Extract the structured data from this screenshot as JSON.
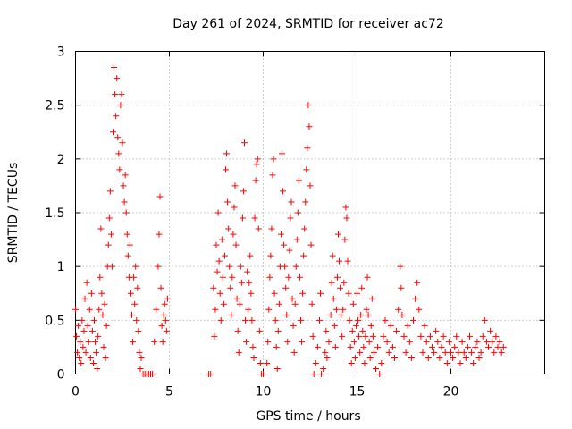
{
  "chart_data": {
    "type": "scatter",
    "title": "Day 261 of 2024, SRMTID for receiver ac72",
    "xlabel": "GPS time / hours",
    "ylabel": "SRMTID / TECUs",
    "xlim": [
      0,
      25
    ],
    "ylim": [
      0,
      3
    ],
    "xticks": [
      0,
      5,
      10,
      15,
      20
    ],
    "yticks": [
      0,
      0.5,
      1,
      1.5,
      2,
      2.5,
      3
    ],
    "xtick_labels": [
      "0",
      "5",
      "10",
      "15",
      "20"
    ],
    "ytick_labels": [
      "0",
      "0.5",
      "1",
      "1.5",
      "2",
      "2.5",
      "3"
    ],
    "grid": true,
    "legend": "none",
    "marker": "plus",
    "series": [
      {
        "name": "SRMTID",
        "color": "#ff0000",
        "points": [
          [
            0.0,
            0.6
          ],
          [
            0.05,
            0.35
          ],
          [
            0.1,
            0.2
          ],
          [
            0.15,
            0.45
          ],
          [
            0.2,
            0.15
          ],
          [
            0.25,
            0.3
          ],
          [
            0.3,
            0.1
          ],
          [
            0.35,
            0.5
          ],
          [
            0.4,
            0.25
          ],
          [
            0.45,
            0.4
          ],
          [
            0.5,
            0.7
          ],
          [
            0.55,
            0.2
          ],
          [
            0.6,
            0.85
          ],
          [
            0.65,
            0.45
          ],
          [
            0.7,
            0.3
          ],
          [
            0.75,
            0.6
          ],
          [
            0.8,
            0.15
          ],
          [
            0.85,
            0.75
          ],
          [
            0.9,
            0.4
          ],
          [
            0.95,
            0.1
          ],
          [
            1.0,
            0.5
          ],
          [
            1.05,
            0.3
          ],
          [
            1.1,
            0.2
          ],
          [
            1.15,
            0.05
          ],
          [
            1.2,
            0.35
          ],
          [
            1.25,
            0.6
          ],
          [
            1.3,
            0.9
          ],
          [
            1.35,
            1.35
          ],
          [
            1.4,
            0.75
          ],
          [
            1.45,
            0.55
          ],
          [
            1.5,
            0.25
          ],
          [
            1.55,
            0.65
          ],
          [
            1.6,
            0.15
          ],
          [
            1.65,
            0.45
          ],
          [
            1.7,
            1.0
          ],
          [
            1.75,
            1.2
          ],
          [
            1.8,
            1.45
          ],
          [
            1.85,
            1.7
          ],
          [
            1.9,
            1.3
          ],
          [
            1.95,
            1.0
          ],
          [
            2.0,
            2.25
          ],
          [
            2.05,
            2.85
          ],
          [
            2.1,
            2.6
          ],
          [
            2.15,
            2.4
          ],
          [
            2.2,
            2.75
          ],
          [
            2.25,
            2.2
          ],
          [
            2.3,
            2.05
          ],
          [
            2.35,
            1.9
          ],
          [
            2.4,
            2.5
          ],
          [
            2.45,
            2.6
          ],
          [
            2.5,
            2.15
          ],
          [
            2.55,
            1.75
          ],
          [
            2.6,
            1.6
          ],
          [
            2.65,
            1.85
          ],
          [
            2.7,
            1.5
          ],
          [
            2.75,
            1.3
          ],
          [
            2.8,
            1.1
          ],
          [
            2.85,
            0.9
          ],
          [
            2.9,
            1.2
          ],
          [
            2.95,
            0.75
          ],
          [
            3.0,
            0.55
          ],
          [
            3.05,
            0.3
          ],
          [
            3.1,
            0.9
          ],
          [
            3.15,
            0.65
          ],
          [
            3.2,
            1.0
          ],
          [
            3.25,
            0.5
          ],
          [
            3.3,
            0.8
          ],
          [
            3.35,
            0.4
          ],
          [
            3.4,
            0.2
          ],
          [
            3.45,
            0.05
          ],
          [
            3.5,
            0.15
          ],
          [
            3.6,
            0.0
          ],
          [
            3.7,
            0.0
          ],
          [
            3.8,
            0.0
          ],
          [
            3.9,
            0.0
          ],
          [
            4.0,
            0.0
          ],
          [
            4.1,
            0.0
          ],
          [
            4.2,
            0.3
          ],
          [
            4.3,
            0.6
          ],
          [
            4.4,
            1.0
          ],
          [
            4.45,
            1.3
          ],
          [
            4.5,
            1.65
          ],
          [
            4.55,
            0.8
          ],
          [
            4.6,
            0.45
          ],
          [
            4.65,
            0.3
          ],
          [
            4.7,
            0.55
          ],
          [
            4.75,
            0.65
          ],
          [
            4.8,
            0.5
          ],
          [
            4.85,
            0.4
          ],
          [
            4.9,
            0.7
          ],
          [
            7.1,
            0.0
          ],
          [
            7.2,
            0.0
          ],
          [
            7.35,
            0.8
          ],
          [
            7.4,
            0.35
          ],
          [
            7.45,
            0.6
          ],
          [
            7.5,
            1.2
          ],
          [
            7.55,
            0.95
          ],
          [
            7.6,
            1.5
          ],
          [
            7.65,
            1.05
          ],
          [
            7.7,
            0.75
          ],
          [
            7.75,
            0.5
          ],
          [
            7.8,
            1.25
          ],
          [
            7.85,
            0.9
          ],
          [
            7.9,
            0.65
          ],
          [
            7.95,
            1.1
          ],
          [
            8.0,
            1.9
          ],
          [
            8.05,
            2.05
          ],
          [
            8.1,
            1.6
          ],
          [
            8.15,
            1.35
          ],
          [
            8.2,
            1.0
          ],
          [
            8.25,
            0.8
          ],
          [
            8.3,
            0.55
          ],
          [
            8.35,
            0.9
          ],
          [
            8.4,
            1.3
          ],
          [
            8.45,
            1.55
          ],
          [
            8.5,
            1.75
          ],
          [
            8.55,
            1.2
          ],
          [
            8.6,
            0.7
          ],
          [
            8.65,
            0.4
          ],
          [
            8.7,
            0.2
          ],
          [
            8.75,
            0.65
          ],
          [
            8.8,
            1.0
          ],
          [
            8.85,
            0.85
          ],
          [
            8.9,
            1.45
          ],
          [
            8.95,
            1.7
          ],
          [
            9.0,
            2.15
          ],
          [
            9.05,
            0.5
          ],
          [
            9.1,
            0.3
          ],
          [
            9.15,
            0.95
          ],
          [
            9.2,
            0.6
          ],
          [
            9.25,
            0.85
          ],
          [
            9.3,
            1.1
          ],
          [
            9.35,
            0.75
          ],
          [
            9.4,
            0.5
          ],
          [
            9.45,
            0.25
          ],
          [
            9.5,
            0.15
          ],
          [
            9.55,
            1.45
          ],
          [
            9.6,
            1.8
          ],
          [
            9.65,
            1.95
          ],
          [
            9.7,
            2.0
          ],
          [
            9.75,
            1.35
          ],
          [
            9.8,
            0.4
          ],
          [
            9.85,
            0.1
          ],
          [
            9.9,
            0.0
          ],
          [
            10.0,
            0.0
          ],
          [
            10.2,
            0.1
          ],
          [
            10.25,
            0.3
          ],
          [
            10.3,
            0.6
          ],
          [
            10.35,
            0.9
          ],
          [
            10.4,
            1.1
          ],
          [
            10.45,
            1.35
          ],
          [
            10.5,
            1.85
          ],
          [
            10.55,
            2.0
          ],
          [
            10.6,
            0.75
          ],
          [
            10.65,
            0.5
          ],
          [
            10.7,
            0.25
          ],
          [
            10.75,
            0.05
          ],
          [
            10.8,
            0.4
          ],
          [
            10.85,
            0.65
          ],
          [
            10.9,
            1.0
          ],
          [
            10.95,
            1.3
          ],
          [
            11.0,
            2.05
          ],
          [
            11.05,
            1.7
          ],
          [
            11.1,
            1.2
          ],
          [
            11.15,
            1.0
          ],
          [
            11.2,
            0.8
          ],
          [
            11.25,
            0.55
          ],
          [
            11.3,
            0.3
          ],
          [
            11.35,
            0.9
          ],
          [
            11.4,
            1.15
          ],
          [
            11.45,
            1.45
          ],
          [
            11.5,
            1.6
          ],
          [
            11.55,
            0.7
          ],
          [
            11.6,
            0.45
          ],
          [
            11.65,
            0.2
          ],
          [
            11.7,
            0.65
          ],
          [
            11.75,
            1.0
          ],
          [
            11.8,
            1.25
          ],
          [
            11.85,
            1.5
          ],
          [
            11.9,
            1.8
          ],
          [
            11.95,
            0.9
          ],
          [
            12.0,
            0.5
          ],
          [
            12.05,
            0.3
          ],
          [
            12.1,
            0.75
          ],
          [
            12.15,
            1.1
          ],
          [
            12.2,
            1.35
          ],
          [
            12.25,
            1.6
          ],
          [
            12.3,
            1.9
          ],
          [
            12.35,
            2.1
          ],
          [
            12.4,
            2.5
          ],
          [
            12.45,
            2.3
          ],
          [
            12.5,
            1.75
          ],
          [
            12.55,
            1.2
          ],
          [
            12.6,
            0.65
          ],
          [
            12.65,
            0.35
          ],
          [
            12.7,
            0.0
          ],
          [
            12.8,
            0.1
          ],
          [
            12.9,
            0.25
          ],
          [
            13.0,
            0.5
          ],
          [
            13.05,
            0.75
          ],
          [
            13.1,
            0.0
          ],
          [
            13.2,
            0.05
          ],
          [
            13.3,
            0.2
          ],
          [
            13.35,
            0.4
          ],
          [
            13.4,
            0.15
          ],
          [
            13.5,
            0.3
          ],
          [
            13.6,
            0.55
          ],
          [
            13.65,
            0.85
          ],
          [
            13.7,
            1.1
          ],
          [
            13.75,
            0.7
          ],
          [
            13.8,
            0.45
          ],
          [
            13.85,
            0.25
          ],
          [
            13.9,
            0.6
          ],
          [
            13.95,
            0.9
          ],
          [
            14.0,
            1.3
          ],
          [
            14.05,
            1.05
          ],
          [
            14.1,
            0.8
          ],
          [
            14.15,
            0.55
          ],
          [
            14.2,
            0.35
          ],
          [
            14.25,
            0.6
          ],
          [
            14.3,
            0.85
          ],
          [
            14.35,
            1.25
          ],
          [
            14.4,
            1.55
          ],
          [
            14.45,
            1.45
          ],
          [
            14.5,
            1.05
          ],
          [
            14.55,
            0.75
          ],
          [
            14.6,
            0.5
          ],
          [
            14.65,
            0.25
          ],
          [
            14.7,
            0.1
          ],
          [
            14.75,
            0.4
          ],
          [
            14.8,
            0.65
          ],
          [
            14.85,
            0.3
          ],
          [
            14.9,
            0.15
          ],
          [
            14.95,
            0.45
          ],
          [
            15.0,
            0.75
          ],
          [
            15.05,
            0.5
          ],
          [
            15.1,
            0.35
          ],
          [
            15.15,
            0.2
          ],
          [
            15.2,
            0.55
          ],
          [
            15.25,
            0.8
          ],
          [
            15.3,
            0.4
          ],
          [
            15.35,
            0.25
          ],
          [
            15.4,
            0.1
          ],
          [
            15.45,
            0.35
          ],
          [
            15.5,
            0.6
          ],
          [
            15.55,
            0.9
          ],
          [
            15.6,
            0.55
          ],
          [
            15.65,
            0.3
          ],
          [
            15.7,
            0.15
          ],
          [
            15.75,
            0.45
          ],
          [
            15.8,
            0.7
          ],
          [
            15.85,
            0.35
          ],
          [
            15.9,
            0.2
          ],
          [
            16.0,
            0.05
          ],
          [
            16.1,
            0.25
          ],
          [
            16.2,
            0.0
          ],
          [
            16.3,
            0.1
          ],
          [
            16.4,
            0.35
          ],
          [
            16.5,
            0.5
          ],
          [
            16.6,
            0.3
          ],
          [
            16.7,
            0.2
          ],
          [
            16.8,
            0.45
          ],
          [
            16.9,
            0.25
          ],
          [
            17.0,
            0.15
          ],
          [
            17.1,
            0.4
          ],
          [
            17.2,
            0.6
          ],
          [
            17.3,
            1.0
          ],
          [
            17.35,
            0.8
          ],
          [
            17.4,
            0.55
          ],
          [
            17.5,
            0.35
          ],
          [
            17.6,
            0.2
          ],
          [
            17.7,
            0.45
          ],
          [
            17.8,
            0.3
          ],
          [
            17.9,
            0.15
          ],
          [
            18.0,
            0.5
          ],
          [
            18.1,
            0.7
          ],
          [
            18.2,
            0.85
          ],
          [
            18.3,
            0.6
          ],
          [
            18.4,
            0.35
          ],
          [
            18.5,
            0.2
          ],
          [
            18.6,
            0.45
          ],
          [
            18.7,
            0.3
          ],
          [
            18.8,
            0.15
          ],
          [
            18.9,
            0.35
          ],
          [
            19.0,
            0.25
          ],
          [
            19.1,
            0.2
          ],
          [
            19.2,
            0.4
          ],
          [
            19.3,
            0.3
          ],
          [
            19.4,
            0.15
          ],
          [
            19.5,
            0.25
          ],
          [
            19.6,
            0.35
          ],
          [
            19.7,
            0.2
          ],
          [
            19.8,
            0.1
          ],
          [
            19.9,
            0.3
          ],
          [
            20.0,
            0.2
          ],
          [
            20.1,
            0.15
          ],
          [
            20.2,
            0.25
          ],
          [
            20.3,
            0.35
          ],
          [
            20.4,
            0.2
          ],
          [
            20.5,
            0.1
          ],
          [
            20.6,
            0.3
          ],
          [
            20.7,
            0.2
          ],
          [
            20.8,
            0.15
          ],
          [
            20.9,
            0.25
          ],
          [
            21.0,
            0.35
          ],
          [
            21.1,
            0.2
          ],
          [
            21.2,
            0.1
          ],
          [
            21.3,
            0.25
          ],
          [
            21.4,
            0.3
          ],
          [
            21.5,
            0.15
          ],
          [
            21.6,
            0.2
          ],
          [
            21.7,
            0.35
          ],
          [
            21.8,
            0.5
          ],
          [
            21.9,
            0.3
          ],
          [
            22.0,
            0.25
          ],
          [
            22.1,
            0.4
          ],
          [
            22.2,
            0.3
          ],
          [
            22.3,
            0.2
          ],
          [
            22.4,
            0.35
          ],
          [
            22.5,
            0.25
          ],
          [
            22.6,
            0.3
          ],
          [
            22.7,
            0.2
          ],
          [
            22.8,
            0.25
          ]
        ]
      }
    ]
  }
}
